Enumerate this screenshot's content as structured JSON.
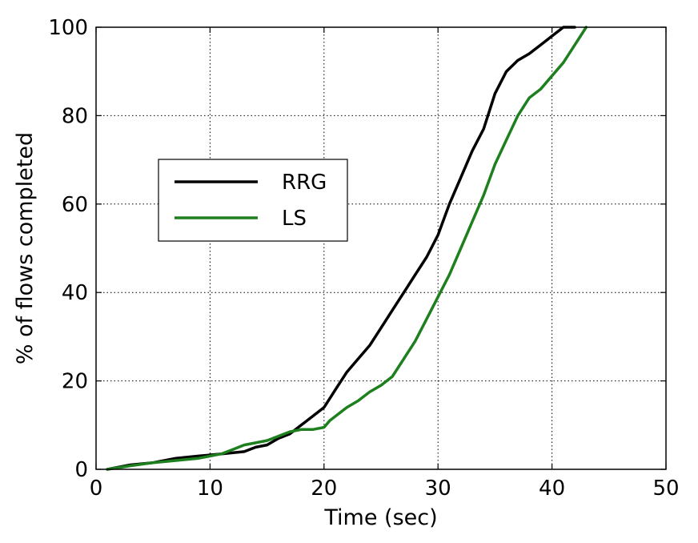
{
  "chart_data": {
    "type": "line",
    "title": "",
    "xlabel": "Time (sec)",
    "ylabel": "% of flows completed",
    "xlim": [
      0,
      50
    ],
    "ylim": [
      0,
      100
    ],
    "xticks": [
      "0",
      "10",
      "20",
      "30",
      "40",
      "50"
    ],
    "yticks": [
      "0",
      "20",
      "40",
      "60",
      "80",
      "100"
    ],
    "grid": true,
    "legend_position": "center-left",
    "series": [
      {
        "name": "RRG",
        "color": "#000000",
        "x": [
          1,
          3,
          5,
          7,
          9,
          11,
          13,
          14,
          15,
          16,
          17,
          18,
          19,
          20,
          20.5,
          21,
          22,
          23,
          24,
          25,
          26,
          27,
          28,
          29,
          30,
          31,
          32,
          33,
          34,
          35,
          36,
          37,
          38,
          39,
          40,
          41,
          42
        ],
        "y": [
          0,
          1,
          1.5,
          2.5,
          3,
          3.5,
          4,
          5,
          5.5,
          7,
          8,
          10,
          12,
          14,
          16,
          18,
          22,
          25,
          28,
          32,
          36,
          40,
          44,
          48,
          53,
          60,
          66,
          72,
          77,
          85,
          90,
          92.5,
          94,
          96,
          98,
          100,
          100
        ]
      },
      {
        "name": "LS",
        "color": "#1e7f1e",
        "x": [
          1,
          3,
          5,
          7,
          9,
          11,
          12,
          13,
          15,
          17,
          18,
          19,
          20,
          20.5,
          21,
          22,
          23,
          24,
          25,
          26,
          27,
          28,
          29,
          30,
          31,
          32,
          33,
          34,
          35,
          36,
          37,
          38,
          39,
          40,
          41,
          42,
          43
        ],
        "y": [
          0,
          0.8,
          1.5,
          2,
          2.5,
          3.5,
          4.5,
          5.5,
          6.5,
          8.5,
          9,
          9,
          9.5,
          11,
          12,
          14,
          15.5,
          17.5,
          19,
          21,
          25,
          29,
          34,
          39,
          44,
          50,
          56,
          62,
          69,
          74.5,
          80,
          84,
          86,
          89,
          92,
          96,
          100
        ]
      }
    ]
  }
}
